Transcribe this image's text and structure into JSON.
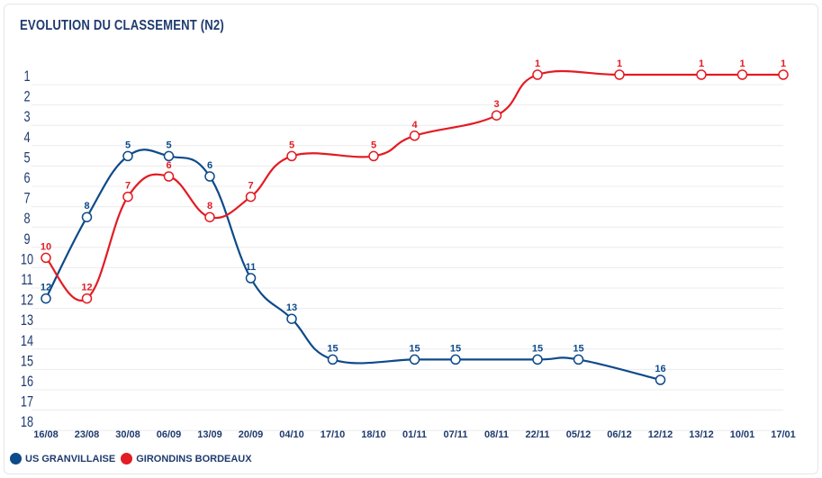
{
  "chart_data": {
    "type": "line",
    "title": "EVOLUTION DU CLASSEMENT (N2)",
    "categories": [
      "16/08",
      "23/08",
      "30/08",
      "06/09",
      "13/09",
      "20/09",
      "04/10",
      "17/10",
      "18/10",
      "01/11",
      "07/11",
      "08/11",
      "22/11",
      "05/12",
      "06/12",
      "12/12",
      "13/12",
      "10/01",
      "17/01"
    ],
    "y_ticks": [
      1,
      2,
      3,
      4,
      5,
      6,
      7,
      8,
      9,
      10,
      11,
      12,
      13,
      14,
      15,
      16,
      17,
      18
    ],
    "ylim": [
      1,
      18
    ],
    "y_inverted": true,
    "grid": true,
    "series": [
      {
        "name": "US GRANVILLAISE",
        "color": "#0d4a8a",
        "values": [
          12,
          8,
          5,
          5,
          6,
          11,
          13,
          15,
          null,
          15,
          15,
          null,
          15,
          15,
          null,
          16,
          null,
          null,
          null
        ]
      },
      {
        "name": "GIRONDINS BORDEAUX",
        "color": "#e31b23",
        "values": [
          10,
          12,
          7,
          6,
          8,
          7,
          5,
          null,
          5,
          4,
          null,
          3,
          1,
          null,
          1,
          null,
          1,
          1,
          1
        ]
      }
    ]
  }
}
